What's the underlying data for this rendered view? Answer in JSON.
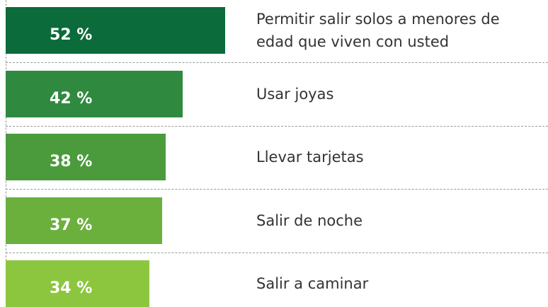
{
  "chart_data": {
    "type": "bar",
    "orientation": "horizontal",
    "categories": [
      "Permitir salir solos a menores de edad que viven con usted",
      "Usar joyas",
      "Llevar tarjetas",
      "Salir de noche",
      "Salir a caminar"
    ],
    "values": [
      52,
      42,
      38,
      37,
      34
    ],
    "value_labels": [
      "52 %",
      "42 %",
      "38 %",
      "37 %",
      "34 %"
    ],
    "colors": [
      "#0b6b3a",
      "#2f8a3f",
      "#4b9b3d",
      "#6bb03d",
      "#8cc63f"
    ]
  }
}
